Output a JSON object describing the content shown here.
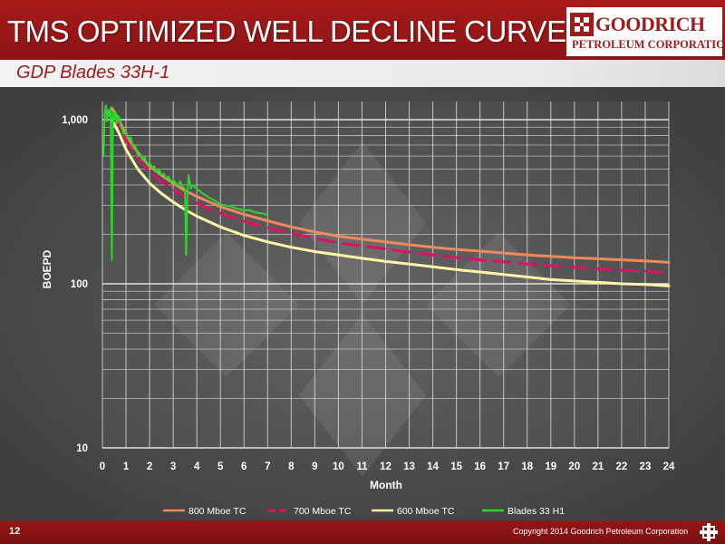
{
  "header": {
    "title": "TMS OPTIMIZED WELL DECLINE CURVE",
    "logo_name": "GOODRICH",
    "logo_sub": "PETROLEUM CORPORATION"
  },
  "subtitle": "GDP Blades 33H-1",
  "footer": {
    "page_number": "12",
    "copyright": "Copyright 2014 Goodrich Petroleum Corporation"
  },
  "colors": {
    "header_red": "#a81b1b",
    "plot_background": "#5a5a5a",
    "series_800": "#f08a5c",
    "series_700": "#d61563",
    "series_600": "#fff7a8",
    "series_blades": "#2ad62a"
  },
  "chart_data": {
    "type": "line",
    "title": "",
    "xlabel": "Month",
    "ylabel": "BOEPD",
    "xlim": [
      0,
      24
    ],
    "ylim": [
      10,
      1300
    ],
    "y_scale": "log",
    "grid": true,
    "legend_position": "bottom",
    "x_ticks": [
      "0",
      "1",
      "2",
      "3",
      "4",
      "5",
      "6",
      "7",
      "8",
      "9",
      "10",
      "11",
      "12",
      "13",
      "14",
      "15",
      "16",
      "17",
      "18",
      "19",
      "20",
      "21",
      "22",
      "23",
      "24"
    ],
    "y_ticks": [
      {
        "value": 10,
        "label": "10"
      },
      {
        "value": 100,
        "label": "100"
      },
      {
        "value": 1000,
        "label": "1,000"
      }
    ],
    "series": [
      {
        "name": "800 Mboe TC",
        "color": "#f08a5c",
        "dash": "solid",
        "x": [
          0.4,
          0.7,
          1,
          1.5,
          2,
          2.5,
          3,
          3.5,
          4,
          5,
          6,
          7,
          8,
          9,
          10,
          11,
          12,
          13,
          14,
          15,
          16,
          17,
          18,
          19,
          20,
          21,
          22,
          23,
          24
        ],
        "values": [
          1180,
          1000,
          810,
          630,
          520,
          460,
          410,
          370,
          340,
          295,
          265,
          242,
          222,
          207,
          195,
          187,
          180,
          173,
          167,
          162,
          158,
          154,
          150,
          147,
          144,
          142,
          140,
          138,
          135
        ]
      },
      {
        "name": "700 Mboe TC",
        "color": "#d61563",
        "dash": "dashed",
        "x": [
          0.4,
          0.7,
          1,
          1.5,
          2,
          2.5,
          3,
          3.5,
          4,
          5,
          6,
          7,
          8,
          9,
          10,
          11,
          12,
          13,
          14,
          15,
          16,
          17,
          18,
          19,
          20,
          21,
          22,
          23,
          24
        ],
        "values": [
          1100,
          930,
          750,
          580,
          480,
          420,
          375,
          338,
          310,
          268,
          240,
          220,
          203,
          189,
          178,
          170,
          163,
          156,
          150,
          145,
          140,
          136,
          132,
          129,
          126,
          123,
          121,
          119,
          117
        ]
      },
      {
        "name": "600 Mboe TC",
        "color": "#fff7a8",
        "dash": "solid",
        "x": [
          0.4,
          0.7,
          1,
          1.5,
          2,
          2.5,
          3,
          3.5,
          4,
          5,
          6,
          7,
          8,
          9,
          10,
          11,
          12,
          13,
          14,
          15,
          16,
          17,
          18,
          19,
          20,
          21,
          22,
          23,
          24
        ],
        "values": [
          1000,
          830,
          660,
          500,
          410,
          355,
          315,
          283,
          258,
          222,
          197,
          180,
          167,
          157,
          150,
          143,
          137,
          132,
          127,
          122,
          118,
          114,
          110,
          106,
          104,
          102,
          100,
          99,
          97
        ]
      },
      {
        "name": "Blades 33 H1",
        "color": "#2ad62a",
        "dash": "solid",
        "x": [
          0.05,
          0.1,
          0.15,
          0.2,
          0.25,
          0.3,
          0.35,
          0.4,
          0.45,
          0.5,
          0.55,
          0.6,
          0.7,
          0.8,
          0.9,
          1.0,
          1.1,
          1.2,
          1.3,
          1.4,
          1.5,
          1.6,
          1.7,
          1.8,
          1.9,
          2.0,
          2.1,
          2.2,
          2.3,
          2.4,
          2.5,
          2.6,
          2.7,
          2.8,
          2.9,
          3.0,
          3.1,
          3.2,
          3.3,
          3.4,
          3.5,
          3.55,
          3.6,
          3.65,
          3.7,
          3.75,
          3.8,
          3.9,
          4.0,
          4.1,
          4.2,
          4.3,
          4.4,
          4.5,
          4.6,
          4.7,
          4.8,
          4.9,
          5.0,
          5.2,
          5.4,
          5.6,
          5.8,
          6.0,
          6.2,
          6.4,
          6.6,
          6.8,
          7.0
        ],
        "values": [
          600,
          1100,
          1220,
          980,
          1150,
          1050,
          1180,
          140,
          1100,
          1000,
          1120,
          950,
          1050,
          900,
          820,
          850,
          760,
          780,
          680,
          690,
          600,
          620,
          570,
          590,
          530,
          550,
          510,
          520,
          480,
          500,
          460,
          470,
          440,
          450,
          420,
          430,
          410,
          400,
          420,
          390,
          380,
          150,
          340,
          460,
          420,
          380,
          400,
          390,
          380,
          370,
          360,
          350,
          345,
          335,
          330,
          325,
          318,
          312,
          305,
          300,
          298,
          290,
          285,
          280,
          282,
          275,
          270,
          268,
          262
        ]
      }
    ]
  }
}
